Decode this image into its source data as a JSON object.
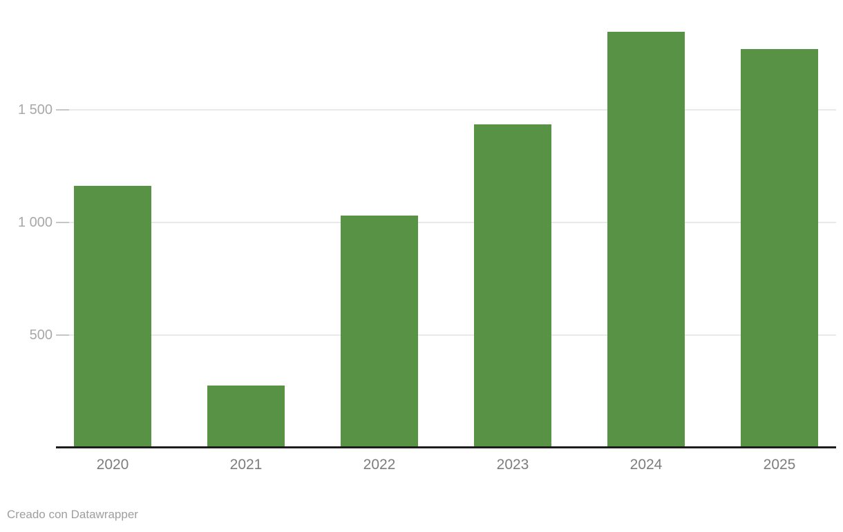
{
  "chart_data": {
    "type": "bar",
    "categories": [
      "2020",
      "2021",
      "2022",
      "2023",
      "2024",
      "2025"
    ],
    "values": [
      1155,
      270,
      1025,
      1430,
      1840,
      1765
    ],
    "title": "",
    "xlabel": "",
    "ylabel": "",
    "ylim": [
      0,
      1990
    ],
    "yticks": [
      {
        "value": 500,
        "label": "500"
      },
      {
        "value": 1000,
        "label": "1 000"
      },
      {
        "value": 1500,
        "label": "1 500"
      }
    ],
    "grid": true,
    "legend": false,
    "bar_color": "#579245"
  },
  "footer": {
    "attribution": "Creado con Datawrapper"
  },
  "colors": {
    "bar": "#579245",
    "gridline": "#e9e9e9",
    "tick": "#c6c6c6",
    "axis_line": "#1c1c1c",
    "y_label": "#a8a8a8",
    "x_label": "#7d7d7d",
    "footer": "#9e9e9e",
    "background": "#ffffff"
  }
}
